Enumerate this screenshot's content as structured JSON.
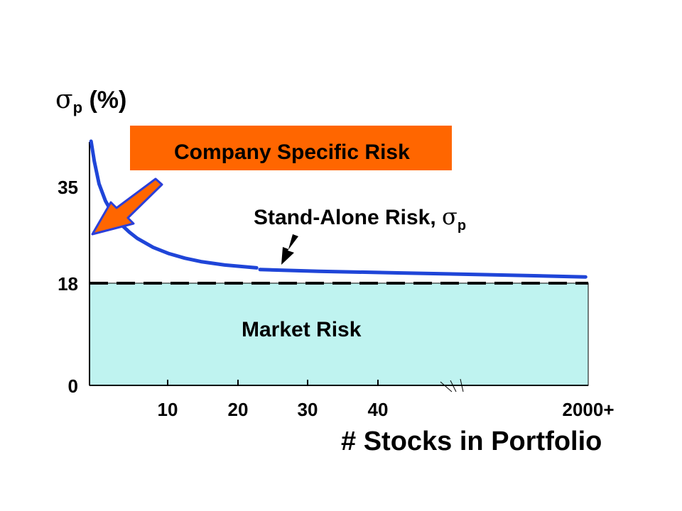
{
  "chart_data": {
    "type": "line",
    "ylabel_symbol": "σ",
    "ylabel_subscript": "p",
    "ylabel_rest": " (%)",
    "xlabel": "# Stocks in Portfolio",
    "x_ticks": [
      "10",
      "20",
      "30",
      "40",
      "2000+"
    ],
    "y_ticks": [
      0,
      18,
      35
    ],
    "ylim": [
      0,
      48
    ],
    "regions": {
      "company_specific_risk": "Company Specific Risk",
      "market_risk": "Market Risk"
    },
    "curve_label": "Stand-Alone Risk, ",
    "curve_label_symbol": "σ",
    "curve_label_subscript": "p",
    "market_risk_level": 18,
    "series": [
      {
        "values": [
          {
            "x": 0.2,
            "y": 43.0
          },
          {
            "x": 0.6,
            "y": 39.5
          },
          {
            "x": 1.2,
            "y": 35.5
          },
          {
            "x": 2,
            "y": 32.5
          },
          {
            "x": 3,
            "y": 30.0
          },
          {
            "x": 4,
            "y": 28.3
          },
          {
            "x": 5,
            "y": 27.0
          },
          {
            "x": 6,
            "y": 25.9
          },
          {
            "x": 8,
            "y": 24.3
          },
          {
            "x": 10,
            "y": 23.2
          },
          {
            "x": 12,
            "y": 22.4
          },
          {
            "x": 14,
            "y": 21.8
          },
          {
            "x": 17,
            "y": 21.2
          },
          {
            "x": 21,
            "y": 20.7
          }
        ]
      },
      {
        "values": [
          {
            "x": 23,
            "y": 20.4
          },
          {
            "x": 30,
            "y": 20.1
          },
          {
            "x": 40,
            "y": 19.8
          },
          {
            "x": 50,
            "y": 19.5
          },
          {
            "x": 62,
            "y": 19.1
          }
        ]
      }
    ],
    "colors": {
      "curve": "#1f45d8",
      "company_risk_box": "#ff6600",
      "market_risk_fill": "#bff3f0",
      "arrow_fill": "#ff6600",
      "arrow_outline": "#2b3fd9"
    }
  }
}
